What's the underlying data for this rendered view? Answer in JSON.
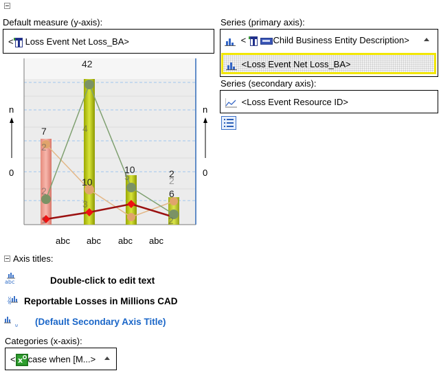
{
  "default_measure": {
    "label": "Default measure (y-axis):",
    "value": "Loss Event Net Loss_BA",
    "prefix": "<",
    "suffix": ">"
  },
  "series_primary": {
    "label": "Series (primary axis):",
    "items": [
      {
        "prefix": "<",
        "value": "Child Business Entity Description",
        "suffix": ">"
      },
      {
        "value": "<Loss Event Net Loss_BA>"
      }
    ]
  },
  "series_secondary": {
    "label": "Series (secondary axis):",
    "items": [
      {
        "value": "<Loss Event Resource ID>"
      }
    ]
  },
  "axis_titles": {
    "label": "Axis titles:",
    "x_title": "Double-click to edit text",
    "y_title": "Reportable Losses in Millions CAD",
    "y2_title": "(Default Secondary Axis Title)"
  },
  "categories": {
    "label": "Categories (x-axis):",
    "value": "case when [M...",
    "prefix": "<",
    "suffix": ">"
  },
  "preview_chart": {
    "left_axis_label": "n",
    "left_axis_zero": "0",
    "right_axis_label": "n",
    "right_axis_zero": "0",
    "x_tick_labels": [
      "abc",
      "abc",
      "abc",
      "abc"
    ]
  },
  "colors": {
    "highlight_border": "#f2e600",
    "accent_blue": "#1a66c8",
    "red_line": "#9b1111"
  },
  "icons": [
    "measure-icon",
    "bar-series-icon",
    "line-series-icon",
    "entity-icon",
    "list-icon",
    "collapse-icon"
  ]
}
